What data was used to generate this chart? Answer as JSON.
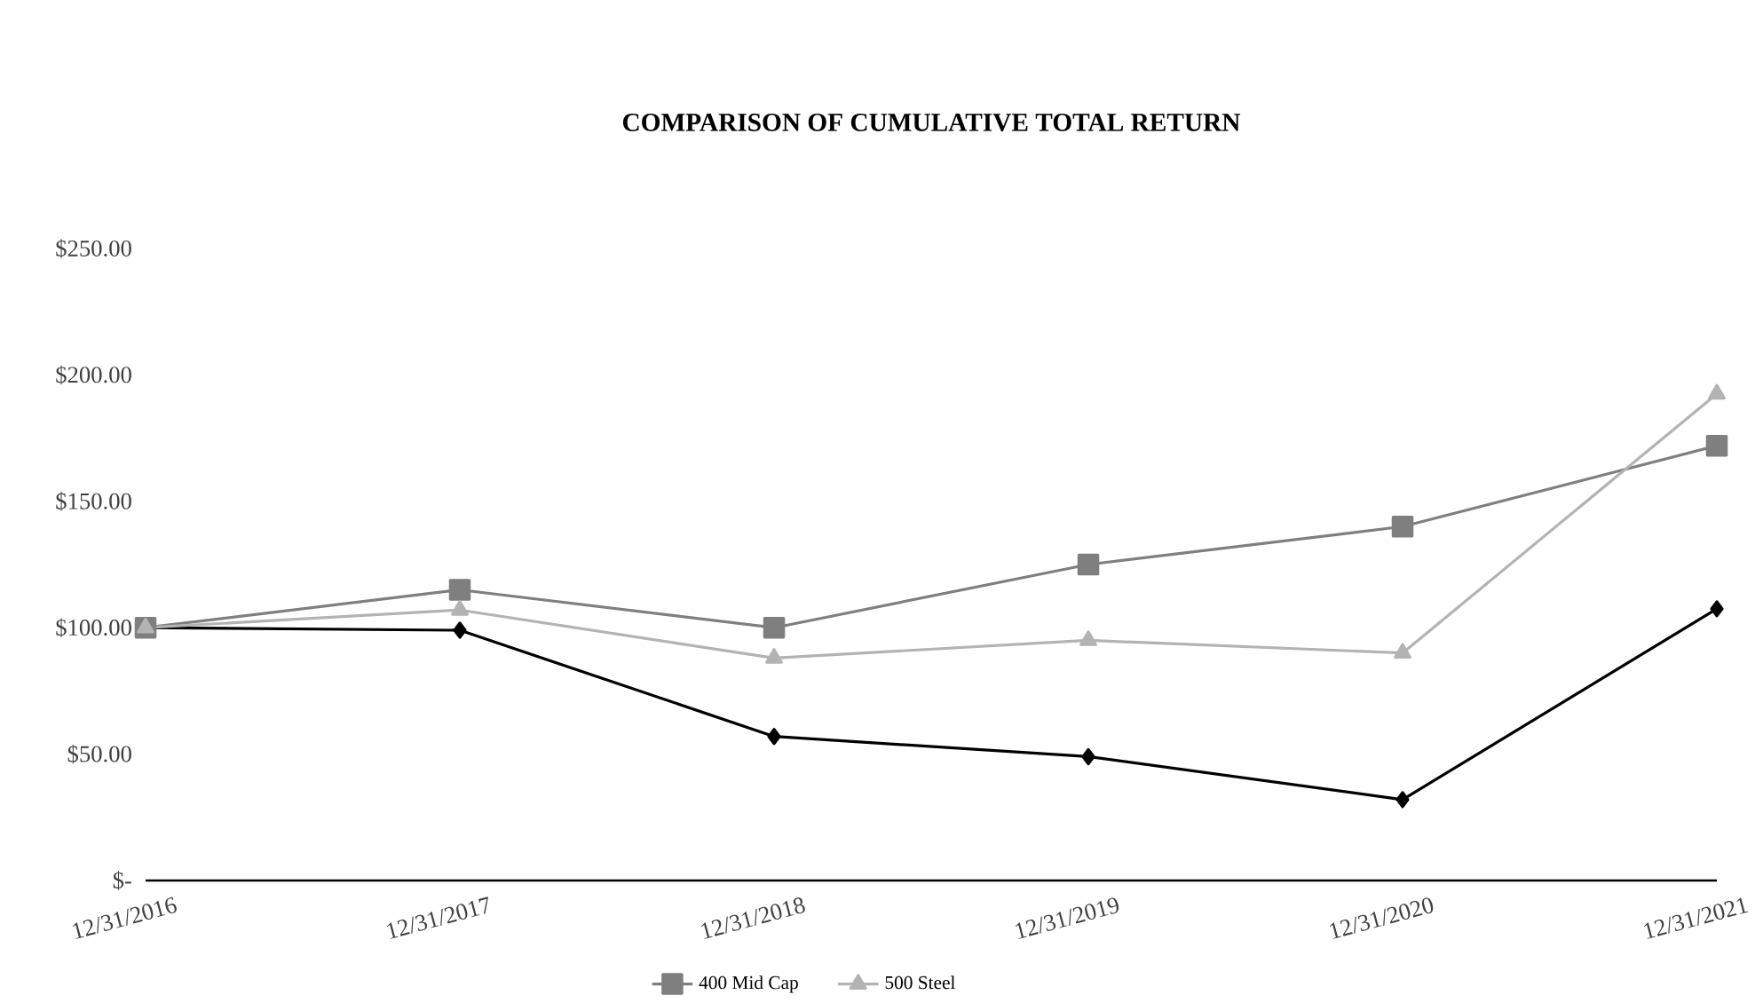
{
  "chart_data": {
    "type": "line",
    "title": "COMPARISON OF CUMULATIVE TOTAL RETURN",
    "categories": [
      "12/31/2016",
      "12/31/2017",
      "12/31/2018",
      "12/31/2019",
      "12/31/2020",
      "12/31/2021"
    ],
    "series": [
      {
        "color": "#000000",
        "marker": "diamond",
        "values": [
          100,
          99,
          57,
          49,
          32,
          107.5
        ]
      },
      {
        "name": "400 Mid Cap",
        "color": "#7f7f7f",
        "marker": "square",
        "values": [
          100,
          115,
          100,
          125,
          140,
          172
        ]
      },
      {
        "name": "500 Steel",
        "color": "#b3b3b3",
        "marker": "triangle",
        "values": [
          100,
          107,
          88,
          95,
          90,
          192.5
        ]
      }
    ],
    "ylim": [
      0,
      250
    ],
    "yticks": [
      {
        "value": 0,
        "label": "$-"
      },
      {
        "value": 50,
        "label": "$50.00"
      },
      {
        "value": 100,
        "label": "$100.00"
      },
      {
        "value": 150,
        "label": "$150.00"
      },
      {
        "value": 200,
        "label": "$200.00"
      },
      {
        "value": 250,
        "label": "$250.00"
      }
    ],
    "grid": false,
    "legend": "bottom",
    "line_style": "solid"
  }
}
